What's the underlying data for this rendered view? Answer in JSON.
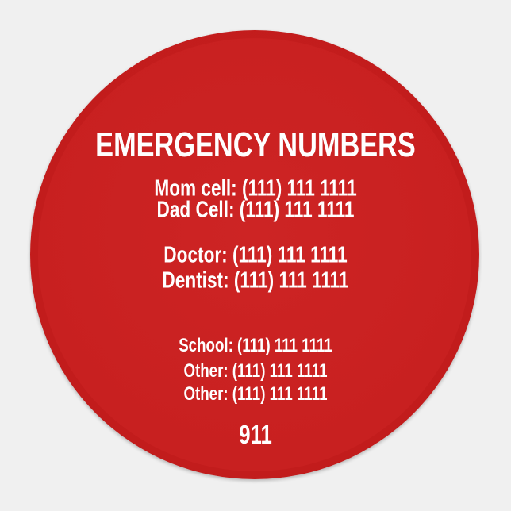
{
  "colors": {
    "background": "#f0f0f0",
    "disc": "#c82020",
    "text": "#ffffff"
  },
  "title": "EMERGENCY NUMBERS",
  "contacts": [
    "Mom cell: (111) 111 1111",
    "Dad Cell: (111) 111 1111",
    "Doctor: (111) 111 1111",
    "Dentist: (111) 111 1111",
    "School: (111) 111 1111",
    "Other: (111) 111 1111",
    "Other: (111) 111 1111"
  ],
  "emergency": "911"
}
